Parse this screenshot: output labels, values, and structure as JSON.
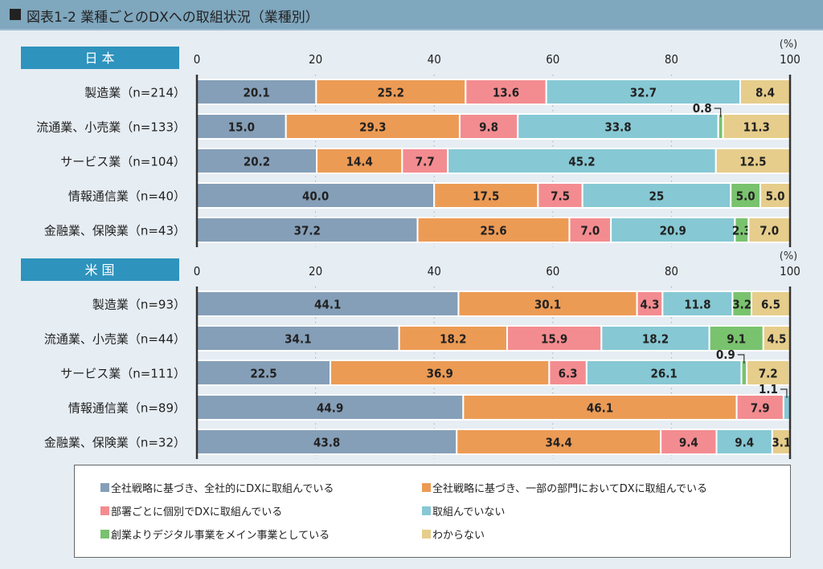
{
  "title": "図表1-2 業種ごとのDXへの取組状況（業種別）",
  "chart_data": {
    "type": "bar",
    "orientation": "horizontal-stacked-100",
    "title": "図表1-2 業種ごとのDXへの取組状況（業種別）",
    "unit_label": "(%)",
    "xlim": [
      0,
      100
    ],
    "x_ticks": [
      "0",
      "20",
      "40",
      "60",
      "80",
      "100"
    ],
    "legend_position": "bottom",
    "series_names": [
      "全社戦略に基づき、全社的にDXに取組んでいる",
      "全社戦略に基づき、一部の部門においてDXに取組んでいる",
      "部署ごとに個別でDXに取組んでいる",
      "取組んでいない",
      "創業よりデジタル事業をメイン事業としている",
      "わからない"
    ],
    "series_colors": [
      "#859fb8",
      "#ec9b55",
      "#f38c90",
      "#86c8d4",
      "#79c26e",
      "#e6cd8b"
    ],
    "panels": [
      {
        "name": "日本",
        "categories": [
          "製造業（n=214）",
          "流通業、小売業（n=133）",
          "サービス業（n=104）",
          "情報通信業（n=40）",
          "金融業、保険業（n=43）"
        ],
        "values": [
          [
            20.1,
            25.2,
            13.6,
            32.7,
            0,
            8.4
          ],
          [
            15.0,
            29.3,
            9.8,
            33.8,
            0.8,
            11.3
          ],
          [
            20.2,
            14.4,
            7.7,
            45.2,
            0,
            12.5
          ],
          [
            40.0,
            17.5,
            7.5,
            25,
            5.0,
            5.0
          ],
          [
            37.2,
            25.6,
            7.0,
            20.9,
            2.3,
            7.0
          ]
        ],
        "labels": [
          [
            "20.1",
            "25.2",
            "13.6",
            "32.7",
            "",
            "8.4"
          ],
          [
            "15.0",
            "29.3",
            "9.8",
            "33.8",
            "0.8",
            "11.3"
          ],
          [
            "20.2",
            "14.4",
            "7.7",
            "45.2",
            "",
            "12.5"
          ],
          [
            "40.0",
            "17.5",
            "7.5",
            "25",
            "5.0",
            "5.0"
          ],
          [
            "37.2",
            "25.6",
            "7.0",
            "20.9",
            "2.3",
            "7.0"
          ]
        ]
      },
      {
        "name": "米国",
        "categories": [
          "製造業（n=93）",
          "流通業、小売業（n=44）",
          "サービス業（n=111）",
          "情報通信業（n=89）",
          "金融業、保険業（n=32）"
        ],
        "values": [
          [
            44.1,
            30.1,
            4.3,
            11.8,
            3.2,
            6.5
          ],
          [
            34.1,
            18.2,
            15.9,
            18.2,
            9.1,
            4.5
          ],
          [
            22.5,
            36.9,
            6.3,
            26.1,
            0.9,
            7.2
          ],
          [
            44.9,
            46.1,
            7.9,
            1.1,
            0,
            0
          ],
          [
            43.8,
            34.4,
            9.4,
            9.4,
            0,
            3.1
          ]
        ],
        "labels": [
          [
            "44.1",
            "30.1",
            "4.3",
            "11.8",
            "3.2",
            "6.5"
          ],
          [
            "34.1",
            "18.2",
            "15.9",
            "18.2",
            "9.1",
            "4.5"
          ],
          [
            "22.5",
            "36.9",
            "6.3",
            "26.1",
            "0.9",
            "7.2"
          ],
          [
            "44.9",
            "46.1",
            "7.9",
            "1.1",
            "",
            ""
          ],
          [
            "43.8",
            "34.4",
            "9.4",
            "9.4",
            "",
            "3.1"
          ]
        ]
      }
    ],
    "callouts": [
      {
        "panel": 0,
        "row": 1,
        "series": 4,
        "text": "0.8"
      },
      {
        "panel": 1,
        "row": 2,
        "series": 4,
        "text": "0.9"
      },
      {
        "panel": 1,
        "row": 3,
        "series": 3,
        "text": "1.1"
      }
    ]
  },
  "legend": {
    "items": [
      {
        "label": "全社戦略に基づき、全社的にDXに取組んでいる",
        "color": "#859fb8"
      },
      {
        "label": "全社戦略に基づき、一部の部門においてDXに取組んでいる",
        "color": "#ec9b55"
      },
      {
        "label": "部署ごとに個別でDXに取組んでいる",
        "color": "#f38c90"
      },
      {
        "label": "取組んでいない",
        "color": "#86c8d4"
      },
      {
        "label": "創業よりデジタル事業をメイン事業としている",
        "color": "#79c26e"
      },
      {
        "label": "わからない",
        "color": "#e6cd8b"
      }
    ]
  },
  "colors": {
    "panel_header": "#2e93bd",
    "title_bar": "#7fa7be",
    "background": "#e6edf3"
  }
}
